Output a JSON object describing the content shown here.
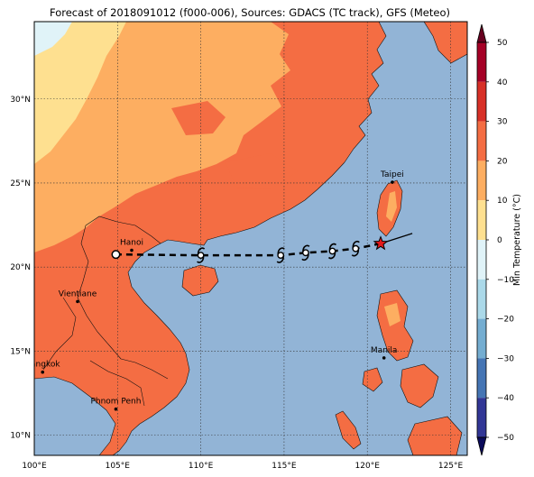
{
  "title": "Forecast of 2018091012 (f000-006), Sources: GDACS (TC track), GFS (Meteo)",
  "colors": {
    "sea": "#92b4d6",
    "land_warm": "#f46d43",
    "land_mild": "#fdae61",
    "land_cool": "#fee090",
    "land_cold": "#e0f3f8",
    "track": "#000000",
    "current_position": "#e41a1c"
  },
  "map": {
    "lon_range": [
      100,
      126
    ],
    "lat_range": [
      8.8,
      34.6
    ],
    "x_ticks": [
      {
        "lon": 100,
        "label": "100°E"
      },
      {
        "lon": 105,
        "label": "105°E"
      },
      {
        "lon": 110,
        "label": "110°E"
      },
      {
        "lon": 115,
        "label": "115°E"
      },
      {
        "lon": 120,
        "label": "120°E"
      },
      {
        "lon": 125,
        "label": "125°E"
      }
    ],
    "y_ticks": [
      {
        "lat": 10,
        "label": "10°N"
      },
      {
        "lat": 15,
        "label": "15°N"
      },
      {
        "lat": 20,
        "label": "20°N"
      },
      {
        "lat": 25,
        "label": "25°N"
      },
      {
        "lat": 30,
        "label": "30°N"
      }
    ],
    "grid": true
  },
  "cities": [
    {
      "name": "Taipei",
      "lon": 121.5,
      "lat": 25.05
    },
    {
      "name": "Hanoi",
      "lon": 105.85,
      "lat": 21.0
    },
    {
      "name": "Vientiane",
      "lon": 102.6,
      "lat": 17.95
    },
    {
      "name": "Manila",
      "lon": 121.0,
      "lat": 14.6
    },
    {
      "name": "Bangkok",
      "lon": 100.5,
      "lat": 13.75
    },
    {
      "name": "Phnom Penh",
      "lon": 104.9,
      "lat": 11.55
    }
  ],
  "storm_track": {
    "current": {
      "lon": 120.8,
      "lat": 21.4
    },
    "past": [
      {
        "lon": 120.8,
        "lat": 21.4
      },
      {
        "lon": 122.7,
        "lat": 22.0
      }
    ],
    "forecast_points": [
      {
        "lon": 120.8,
        "lat": 21.4,
        "marker": "star"
      },
      {
        "lon": 119.3,
        "lat": 21.1,
        "marker": "storm"
      },
      {
        "lon": 117.9,
        "lat": 20.95,
        "marker": "storm"
      },
      {
        "lon": 116.3,
        "lat": 20.85,
        "marker": "storm"
      },
      {
        "lon": 114.8,
        "lat": 20.7,
        "marker": "storm"
      },
      {
        "lon": 110.0,
        "lat": 20.7,
        "marker": "storm"
      },
      {
        "lon": 104.9,
        "lat": 20.75,
        "marker": "circle"
      }
    ]
  },
  "colorbar": {
    "label": "Min Temperature (°C)",
    "min": -50,
    "max": 50,
    "ticks": [
      50,
      40,
      30,
      20,
      10,
      0,
      -10,
      -20,
      -30,
      -40,
      -50
    ],
    "tick_labels": [
      "50",
      "40",
      "30",
      "20",
      "10",
      "0",
      "−10",
      "−20",
      "−30",
      "−40",
      "−50"
    ],
    "bands": [
      {
        "from": 40,
        "to": 50,
        "color": "#a50026"
      },
      {
        "from": 30,
        "to": 40,
        "color": "#d73027"
      },
      {
        "from": 20,
        "to": 30,
        "color": "#f46d43"
      },
      {
        "from": 10,
        "to": 20,
        "color": "#fdae61"
      },
      {
        "from": 0,
        "to": 10,
        "color": "#fee090"
      },
      {
        "from": -10,
        "to": 0,
        "color": "#e0f3f8"
      },
      {
        "from": -20,
        "to": -10,
        "color": "#abd9e9"
      },
      {
        "from": -30,
        "to": -20,
        "color": "#74add1"
      },
      {
        "from": -40,
        "to": -30,
        "color": "#4575b4"
      },
      {
        "from": -50,
        "to": -40,
        "color": "#313695"
      }
    ],
    "extend_top": "#67001f",
    "extend_bottom": "#0a0a5a"
  }
}
